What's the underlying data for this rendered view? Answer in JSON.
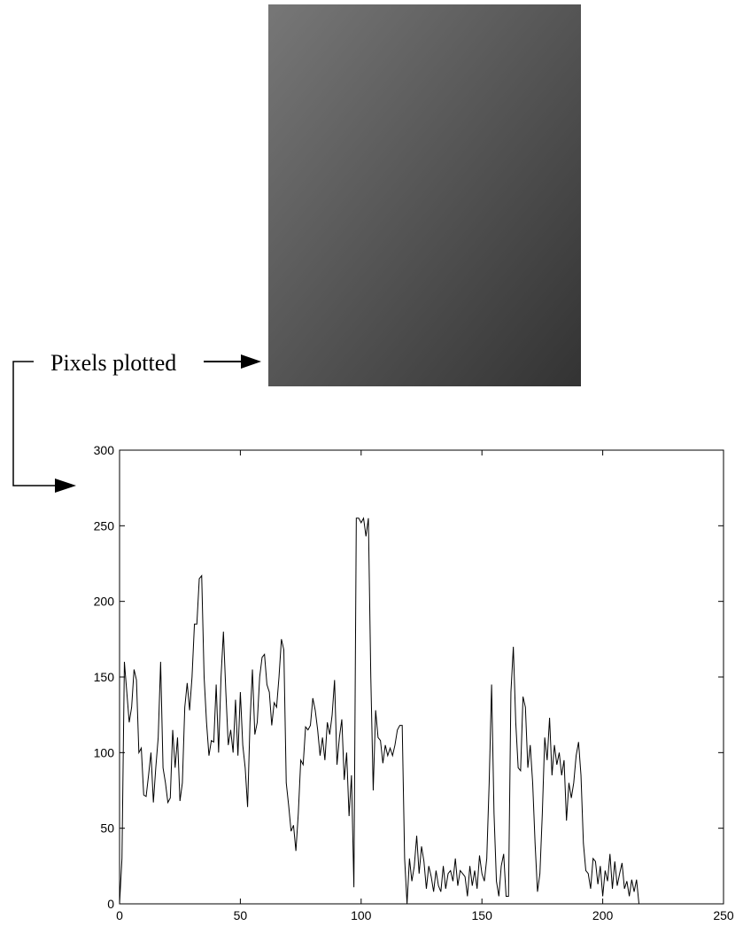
{
  "chart_data": {
    "type": "line",
    "annotation": "Pixels plotted",
    "color": "#000000",
    "x": [
      0,
      1,
      2,
      3,
      4,
      5,
      6,
      7,
      8,
      9,
      10,
      11,
      12,
      13,
      14,
      15,
      16,
      17,
      18,
      19,
      20,
      21,
      22,
      23,
      24,
      25,
      26,
      27,
      28,
      29,
      30,
      31,
      32,
      33,
      34,
      35,
      36,
      37,
      38,
      39,
      40,
      41,
      42,
      43,
      44,
      45,
      46,
      47,
      48,
      49,
      50,
      51,
      52,
      53,
      54,
      55,
      56,
      57,
      58,
      59,
      60,
      61,
      62,
      63,
      64,
      65,
      66,
      67,
      68,
      69,
      70,
      71,
      72,
      73,
      74,
      75,
      76,
      77,
      78,
      79,
      80,
      81,
      82,
      83,
      84,
      85,
      86,
      87,
      88,
      89,
      90,
      91,
      92,
      93,
      94,
      95,
      96,
      97,
      98,
      99,
      100,
      101,
      102,
      103,
      104,
      105,
      106,
      107,
      108,
      109,
      110,
      111,
      112,
      113,
      114,
      115,
      116,
      117,
      118,
      119,
      120,
      121,
      122,
      123,
      124,
      125,
      126,
      127,
      128,
      129,
      130,
      131,
      132,
      133,
      134,
      135,
      136,
      137,
      138,
      139,
      140,
      141,
      142,
      143,
      144,
      145,
      146,
      147,
      148,
      149,
      150,
      151,
      152,
      153,
      154,
      155,
      156,
      157,
      158,
      159,
      160,
      161,
      162,
      163,
      164,
      165,
      166,
      167,
      168,
      169,
      170,
      171,
      172,
      173,
      174,
      175,
      176,
      177,
      178,
      179,
      180,
      181,
      182,
      183,
      184,
      185,
      186,
      187,
      188,
      189,
      190,
      191,
      192,
      193,
      194,
      195,
      196,
      197,
      198,
      199,
      200,
      201,
      202,
      203,
      204,
      205,
      206,
      207,
      208,
      209,
      210,
      211,
      212,
      213,
      214,
      215
    ],
    "values": [
      0,
      30,
      160,
      140,
      120,
      130,
      155,
      148,
      100,
      103,
      72,
      71,
      85,
      100,
      67,
      90,
      110,
      160,
      90,
      80,
      67,
      70,
      115,
      90,
      110,
      68,
      80,
      130,
      146,
      128,
      150,
      185,
      185,
      215,
      217,
      150,
      120,
      98,
      108,
      107,
      145,
      100,
      150,
      180,
      140,
      105,
      115,
      100,
      135,
      98,
      140,
      105,
      90,
      64,
      120,
      155,
      112,
      120,
      150,
      163,
      165,
      145,
      140,
      118,
      133,
      130,
      150,
      175,
      168,
      80,
      65,
      48,
      52,
      35,
      60,
      95,
      92,
      117,
      115,
      118,
      136,
      128,
      115,
      98,
      110,
      95,
      120,
      112,
      125,
      148,
      92,
      110,
      122,
      82,
      100,
      58,
      85,
      11,
      255,
      255,
      252,
      255,
      243,
      255,
      150,
      75,
      128,
      110,
      108,
      93,
      105,
      98,
      103,
      98,
      105,
      115,
      118,
      118,
      30,
      0,
      30,
      15,
      25,
      45,
      20,
      38,
      28,
      10,
      25,
      18,
      8,
      22,
      12,
      8,
      25,
      10,
      20,
      22,
      15,
      30,
      12,
      22,
      20,
      18,
      5,
      25,
      12,
      22,
      10,
      32,
      20,
      15,
      30,
      80,
      145,
      60,
      15,
      5,
      25,
      33,
      5,
      5,
      140,
      170,
      120,
      90,
      88,
      137,
      130,
      90,
      105,
      80,
      40,
      8,
      20,
      60,
      110,
      95,
      123,
      85,
      105,
      92,
      100,
      85,
      95,
      55,
      80,
      70,
      80,
      98,
      107,
      85,
      40,
      22,
      20,
      10,
      30,
      28,
      13,
      25,
      5,
      22,
      15,
      33,
      10,
      28,
      12,
      20,
      27,
      10,
      15,
      5,
      16,
      8,
      16,
      0
    ],
    "xlim": [
      0,
      250
    ],
    "xticks": [
      0,
      50,
      100,
      150,
      200,
      250
    ],
    "ylim": [
      0,
      300
    ],
    "yticks": [
      0,
      50,
      100,
      150,
      200,
      250,
      300
    ]
  }
}
